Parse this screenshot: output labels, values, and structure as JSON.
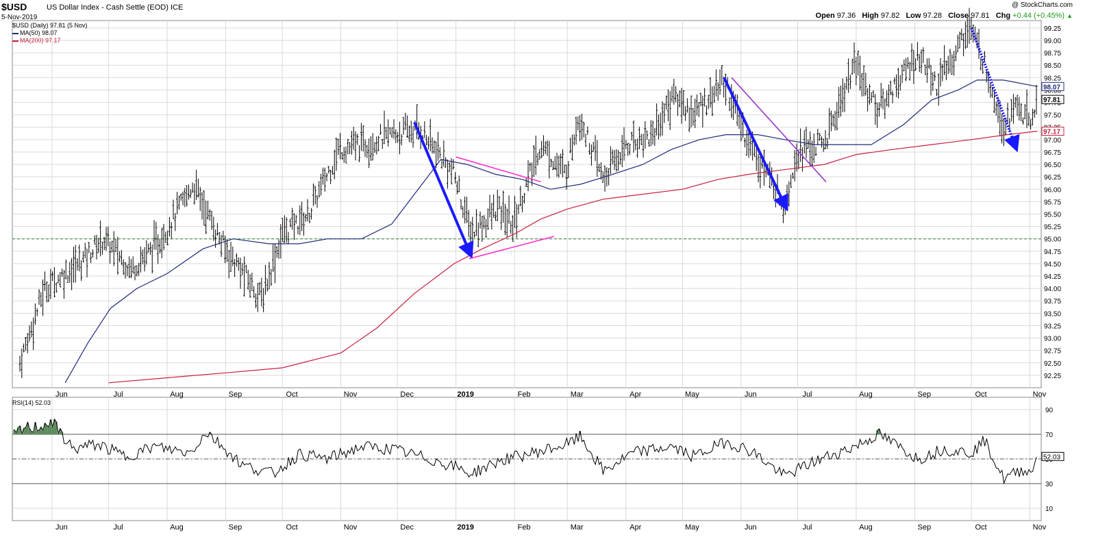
{
  "header": {
    "symbol": "$USD",
    "name": "US Dollar Index - Cash Settle (EOD)",
    "exchange": "ICE",
    "date": "5-Nov-2019",
    "copyright": "@ StockCharts.com",
    "open_label": "Open",
    "open": "97.36",
    "high_label": "High",
    "high": "97.82",
    "low_label": "Low",
    "low": "97.28",
    "close_label": "Close",
    "close": "97.81",
    "chg_label": "Chg",
    "chg": "+0.44 (+0.45%)"
  },
  "legend": {
    "price": "$USD (Daily) 97.81 (5 Nov)",
    "ma50": "MA(50) 98.07",
    "ma200": "MA(200) 97.17",
    "rsi": "RSI(14) 52.03"
  },
  "colors": {
    "price_bars": "#000000",
    "ma50": "#1f2a7a",
    "ma200": "#c81e3c",
    "support": "#2e7d32",
    "arrows": "#1a1aff",
    "trendline_magenta": "#ff33cc",
    "trendline_purple": "#9933cc",
    "rsi_fill": "#5b8a5b",
    "grid": "#d9d9d9"
  },
  "chart_data": [
    {
      "type": "ohlc",
      "title": "$USD US Dollar Index - Cash Settle (EOD)",
      "ylim": [
        92.0,
        99.4
      ],
      "y_ticks": [
        "92.25",
        "92.50",
        "92.75",
        "93.00",
        "93.25",
        "93.50",
        "93.75",
        "94.00",
        "94.25",
        "94.50",
        "94.75",
        "95.00",
        "95.25",
        "95.50",
        "95.75",
        "96.00",
        "96.25",
        "96.50",
        "96.75",
        "97.00",
        "97.25",
        "97.50",
        "97.75",
        "98.00",
        "98.25",
        "98.50",
        "98.75",
        "99.00",
        "99.25"
      ],
      "x_ticks": [
        "Jun",
        "Jul",
        "Aug",
        "Sep",
        "Oct",
        "Nov",
        "Dec",
        "2019",
        "Feb",
        "Mar",
        "Apr",
        "May",
        "Jun",
        "Jul",
        "Aug",
        "Sep",
        "Oct",
        "Nov"
      ],
      "x_ticks_bold": [
        "2019"
      ],
      "closes": {
        "x": [
          "2018-05-15",
          "2018-05-28",
          "2018-06-15",
          "2018-06-28",
          "2018-07-13",
          "2018-07-27",
          "2018-08-15",
          "2018-08-30",
          "2018-09-20",
          "2018-10-01",
          "2018-10-15",
          "2018-10-31",
          "2018-11-12",
          "2018-11-28",
          "2018-12-13",
          "2018-12-31",
          "2019-01-09",
          "2019-01-23",
          "2019-01-31",
          "2019-02-15",
          "2019-02-28",
          "2019-03-07",
          "2019-03-20",
          "2019-04-01",
          "2019-04-15",
          "2019-04-26",
          "2019-05-07",
          "2019-05-23",
          "2019-06-03",
          "2019-06-24",
          "2019-07-01",
          "2019-07-15",
          "2019-07-31",
          "2019-08-13",
          "2019-08-23",
          "2019-09-03",
          "2019-09-13",
          "2019-09-30",
          "2019-10-09",
          "2019-10-18",
          "2019-10-25",
          "2019-11-01",
          "2019-11-05"
        ],
        "y": [
          92.5,
          94.0,
          94.5,
          95.0,
          94.4,
          94.9,
          96.1,
          94.9,
          93.8,
          95.1,
          95.5,
          96.8,
          96.9,
          97.1,
          97.2,
          96.3,
          95.1,
          95.6,
          95.3,
          96.9,
          96.3,
          97.5,
          96.2,
          96.9,
          97.1,
          97.9,
          97.5,
          98.2,
          97.1,
          95.7,
          96.8,
          96.9,
          98.5,
          97.6,
          98.2,
          98.7,
          98.1,
          99.3,
          98.4,
          97.3,
          97.7,
          97.3,
          97.81
        ]
      },
      "ma50": {
        "x": [
          "2018-06-08",
          "2018-06-20",
          "2018-07-02",
          "2018-07-16",
          "2018-08-01",
          "2018-08-20",
          "2018-09-05",
          "2018-09-24",
          "2018-10-10",
          "2018-10-25",
          "2018-11-12",
          "2018-11-28",
          "2018-12-10",
          "2018-12-24",
          "2019-01-07",
          "2019-01-22",
          "2019-02-05",
          "2019-02-20",
          "2019-03-08",
          "2019-03-25",
          "2019-04-10",
          "2019-04-25",
          "2019-05-10",
          "2019-05-24",
          "2019-06-10",
          "2019-06-24",
          "2019-07-10",
          "2019-07-25",
          "2019-08-09",
          "2019-08-26",
          "2019-09-10",
          "2019-09-24",
          "2019-10-04",
          "2019-10-18",
          "2019-11-05"
        ],
        "y": [
          92.1,
          92.9,
          93.6,
          94.0,
          94.3,
          94.8,
          95.0,
          94.9,
          94.9,
          95.0,
          95.0,
          95.3,
          95.9,
          96.6,
          96.5,
          96.3,
          96.2,
          96.0,
          96.1,
          96.3,
          96.5,
          96.8,
          97.0,
          97.1,
          97.1,
          97.0,
          96.9,
          96.9,
          96.9,
          97.3,
          97.8,
          98.0,
          98.2,
          98.2,
          98.07
        ]
      },
      "ma200": {
        "x": [
          "2018-07-01",
          "2018-08-01",
          "2018-09-01",
          "2018-10-01",
          "2018-11-01",
          "2018-11-20",
          "2018-12-10",
          "2018-12-31",
          "2019-01-15",
          "2019-02-01",
          "2019-02-15",
          "2019-03-01",
          "2019-03-20",
          "2019-04-10",
          "2019-05-01",
          "2019-05-20",
          "2019-06-05",
          "2019-06-25",
          "2019-07-15",
          "2019-08-01",
          "2019-08-20",
          "2019-09-10",
          "2019-10-01",
          "2019-10-20",
          "2019-11-05"
        ],
        "y": [
          92.1,
          92.2,
          92.3,
          92.4,
          92.7,
          93.2,
          93.9,
          94.5,
          94.8,
          95.1,
          95.4,
          95.6,
          95.8,
          95.9,
          96.0,
          96.2,
          96.3,
          96.4,
          96.5,
          96.7,
          96.8,
          96.9,
          97.0,
          97.1,
          97.17
        ]
      },
      "support_level": 95.0,
      "annotations": [
        {
          "type": "arrow",
          "from": [
            "2018-12-10",
            97.35
          ],
          "to": [
            "2019-01-08",
            94.75
          ]
        },
        {
          "type": "arrow",
          "from": [
            "2019-05-23",
            98.25
          ],
          "to": [
            "2019-06-24",
            95.7
          ]
        },
        {
          "type": "dotted-arrow",
          "from": [
            "2019-10-01",
            99.25
          ],
          "to": [
            "2019-10-24",
            96.9
          ]
        },
        {
          "type": "trendline",
          "from": [
            "2019-01-01",
            96.65
          ],
          "to": [
            "2019-02-15",
            96.15
          ]
        },
        {
          "type": "trendline",
          "from": [
            "2019-01-08",
            94.6
          ],
          "to": [
            "2019-02-22",
            95.05
          ]
        },
        {
          "type": "trendline",
          "from": [
            "2019-05-27",
            98.25
          ],
          "to": [
            "2019-07-16",
            96.15
          ]
        }
      ]
    },
    {
      "type": "line",
      "title": "RSI(14) 52.03",
      "ylim": [
        0,
        100
      ],
      "y_ticks": [
        "10",
        "30",
        "50",
        "70",
        "90"
      ],
      "reference_lines": [
        30,
        50,
        70
      ],
      "current": 52.03,
      "x": [
        "2018-05-12",
        "2018-05-18",
        "2018-05-25",
        "2018-06-01",
        "2018-06-12",
        "2018-06-25",
        "2018-07-10",
        "2018-07-25",
        "2018-08-13",
        "2018-08-22",
        "2018-09-10",
        "2018-09-26",
        "2018-10-10",
        "2018-10-25",
        "2018-11-12",
        "2018-11-28",
        "2018-12-13",
        "2018-12-31",
        "2019-01-09",
        "2019-01-25",
        "2019-02-14",
        "2019-03-01",
        "2019-03-08",
        "2019-03-20",
        "2019-04-05",
        "2019-04-25",
        "2019-05-07",
        "2019-05-24",
        "2019-06-07",
        "2019-06-24",
        "2019-07-10",
        "2019-07-31",
        "2019-08-13",
        "2019-09-03",
        "2019-09-16",
        "2019-10-01",
        "2019-10-08",
        "2019-10-18",
        "2019-10-29",
        "2019-11-01",
        "2019-11-05"
      ],
      "y": [
        70,
        75,
        76,
        80,
        58,
        62,
        52,
        60,
        55,
        72,
        45,
        38,
        54,
        50,
        60,
        58,
        52,
        44,
        38,
        49,
        56,
        62,
        68,
        40,
        55,
        60,
        52,
        64,
        56,
        36,
        48,
        60,
        70,
        50,
        58,
        55,
        65,
        34,
        42,
        38,
        52.03
      ]
    }
  ]
}
